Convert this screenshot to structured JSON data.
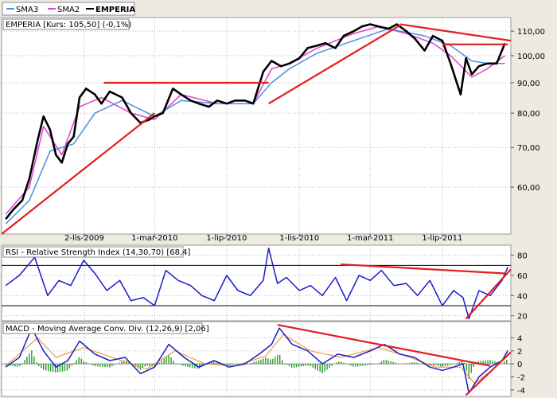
{
  "colors": {
    "sma3": "#4a90e2",
    "sma2": "#e040d0",
    "price": "#000000",
    "trend": "#e02020",
    "indicator": "#1a1acc",
    "signal": "#e8a040",
    "hist": "#2a9a2a",
    "background": "#ffffff",
    "outer": "#eeeae2"
  },
  "legend": {
    "sma3": "SMA3",
    "sma2": "SMA2",
    "price": "EMPERIA"
  },
  "chart_data": [
    {
      "type": "line",
      "title": "EMPERIA [Kurs: 105,50] (-0,1%)",
      "y_scale": "log",
      "ylim": [
        50,
        116
      ],
      "y_ticks": [
        "110,00",
        "100,00",
        "90,00",
        "80,00",
        "70,00",
        "60,00"
      ],
      "y_tick_values": [
        110,
        100,
        90,
        80,
        70,
        60
      ],
      "x_labels": [
        "2-lis-2009",
        "1-mar-2010",
        "1-lip-2010",
        "1-lis-2010",
        "1-mar-2011",
        "1-lip-2011"
      ],
      "x_label_dates": [
        "2009-11-02",
        "2010-03-01",
        "2010-07-01",
        "2010-11-01",
        "2011-03-01",
        "2011-07-01"
      ],
      "x_range": [
        "2009-06-15",
        "2011-10-25"
      ],
      "grid": true,
      "legend_position": "top-left",
      "series": [
        {
          "name": "EMPERIA",
          "x": [
            "2009-06-22",
            "2009-07-05",
            "2009-07-20",
            "2009-08-01",
            "2009-08-15",
            "2009-08-25",
            "2009-09-05",
            "2009-09-15",
            "2009-09-25",
            "2009-10-05",
            "2009-10-15",
            "2009-10-25",
            "2009-11-05",
            "2009-11-20",
            "2009-12-01",
            "2009-12-15",
            "2010-01-05",
            "2010-01-20",
            "2010-02-05",
            "2010-02-20",
            "2010-03-01",
            "2010-03-15",
            "2010-04-01",
            "2010-04-15",
            "2010-05-01",
            "2010-05-15",
            "2010-06-01",
            "2010-06-15",
            "2010-07-01",
            "2010-07-15",
            "2010-08-01",
            "2010-08-15",
            "2010-09-01",
            "2010-09-15",
            "2010-10-01",
            "2010-10-15",
            "2010-11-01",
            "2010-11-15",
            "2010-12-01",
            "2010-12-15",
            "2011-01-01",
            "2011-01-15",
            "2011-02-01",
            "2011-02-15",
            "2011-03-01",
            "2011-03-15",
            "2011-04-01",
            "2011-04-15",
            "2011-05-01",
            "2011-05-15",
            "2011-06-01",
            "2011-06-15",
            "2011-07-01",
            "2011-07-15",
            "2011-08-01",
            "2011-08-10",
            "2011-08-20",
            "2011-09-01",
            "2011-09-15",
            "2011-10-01",
            "2011-10-15"
          ],
          "y": [
            53,
            55,
            57,
            62,
            72,
            79,
            75,
            68,
            66,
            71,
            73,
            85,
            88,
            86,
            83,
            87,
            85,
            80,
            77,
            78,
            79,
            80,
            88,
            86,
            84,
            83,
            82,
            84,
            83,
            84,
            84,
            83,
            94,
            98,
            96,
            97,
            99,
            103,
            104,
            105,
            103,
            108,
            110,
            112,
            113,
            112,
            111,
            113,
            110,
            107,
            102,
            108,
            106,
            97,
            86,
            99,
            93,
            96,
            97,
            97,
            105
          ]
        },
        {
          "name": "SMA2",
          "x": [
            "2009-06-22",
            "2009-08-01",
            "2009-08-25",
            "2009-09-25",
            "2009-10-25",
            "2009-12-01",
            "2010-01-20",
            "2010-03-01",
            "2010-04-15",
            "2010-06-15",
            "2010-08-15",
            "2010-09-15",
            "2010-10-15",
            "2010-12-01",
            "2011-02-01",
            "2011-03-15",
            "2011-05-01",
            "2011-06-15",
            "2011-07-15",
            "2011-08-20",
            "2011-09-15",
            "2011-10-15"
          ],
          "y": [
            54,
            60,
            76,
            68,
            82,
            85,
            80,
            78,
            86,
            83,
            83,
            95,
            97,
            103,
            109,
            112,
            109,
            105,
            100,
            92,
            95,
            100
          ]
        },
        {
          "name": "SMA3",
          "x": [
            "2009-06-22",
            "2009-08-01",
            "2009-09-05",
            "2009-10-15",
            "2009-11-20",
            "2010-01-05",
            "2010-03-01",
            "2010-04-15",
            "2010-06-15",
            "2010-08-15",
            "2010-09-15",
            "2010-10-15",
            "2010-12-01",
            "2011-02-01",
            "2011-04-01",
            "2011-06-01",
            "2011-07-15",
            "2011-08-20",
            "2011-09-15",
            "2011-10-15"
          ],
          "y": [
            52,
            57,
            69,
            71,
            80,
            84,
            79,
            84,
            83,
            83,
            90,
            95,
            101,
            106,
            111,
            108,
            104,
            98,
            97,
            97
          ]
        }
      ],
      "trend_lines": [
        {
          "x": [
            "2009-06-15",
            "2010-03-01"
          ],
          "y": [
            50,
            80
          ]
        },
        {
          "x": [
            "2010-09-10",
            "2011-04-20"
          ],
          "y": [
            83,
            112.5
          ]
        },
        {
          "x": [
            "2009-12-05",
            "2010-09-10"
          ],
          "y": [
            90,
            90
          ]
        },
        {
          "x": [
            "2011-04-20",
            "2011-10-25"
          ],
          "y": [
            113,
            106
          ]
        },
        {
          "x": [
            "2011-07-01",
            "2011-10-20"
          ],
          "y": [
            104.5,
            104.5
          ]
        }
      ]
    },
    {
      "type": "line",
      "title": "RSI - Relative Strength Index (14,30,70) [68,4]",
      "ylim": [
        15,
        90
      ],
      "y_ticks": [
        "80",
        "60",
        "40",
        "20"
      ],
      "y_tick_values": [
        80,
        60,
        40,
        20
      ],
      "reference_levels": [
        30,
        70
      ],
      "series": [
        {
          "name": "RSI",
          "x": [
            "2009-06-22",
            "2009-07-15",
            "2009-08-10",
            "2009-09-01",
            "2009-09-20",
            "2009-10-10",
            "2009-11-01",
            "2009-11-20",
            "2009-12-10",
            "2010-01-01",
            "2010-01-20",
            "2010-02-10",
            "2010-03-01",
            "2010-03-20",
            "2010-04-10",
            "2010-05-01",
            "2010-05-20",
            "2010-06-10",
            "2010-07-01",
            "2010-07-20",
            "2010-08-10",
            "2010-09-01",
            "2010-09-10",
            "2010-09-25",
            "2010-10-10",
            "2010-11-01",
            "2010-11-20",
            "2010-12-10",
            "2011-01-01",
            "2011-01-20",
            "2011-02-10",
            "2011-03-01",
            "2011-03-20",
            "2011-04-10",
            "2011-05-01",
            "2011-05-20",
            "2011-06-10",
            "2011-07-01",
            "2011-07-20",
            "2011-08-05",
            "2011-08-15",
            "2011-09-01",
            "2011-09-20",
            "2011-10-10",
            "2011-10-20"
          ],
          "y": [
            50,
            60,
            78,
            40,
            55,
            50,
            75,
            62,
            45,
            55,
            35,
            38,
            30,
            65,
            55,
            50,
            40,
            35,
            60,
            45,
            40,
            55,
            87,
            52,
            58,
            45,
            50,
            40,
            58,
            35,
            60,
            55,
            65,
            50,
            52,
            40,
            55,
            30,
            45,
            38,
            17,
            45,
            40,
            55,
            68.4
          ]
        }
      ],
      "trend_lines": [
        {
          "x": [
            "2011-01-10",
            "2011-10-15"
          ],
          "y": [
            71,
            62
          ]
        },
        {
          "x": [
            "2011-08-10",
            "2011-10-25"
          ],
          "y": [
            17,
            66
          ]
        }
      ]
    },
    {
      "type": "line",
      "title": "MACD - Moving Average Conv. Div. (12,26,9) [2,06]",
      "ylim": [
        -5,
        6.5
      ],
      "y_ticks": [
        "4",
        "2",
        "0",
        "-2",
        "-4"
      ],
      "y_tick_values": [
        4,
        2,
        0,
        -2,
        -4
      ],
      "series": [
        {
          "name": "MACD",
          "x": [
            "2009-06-22",
            "2009-07-15",
            "2009-08-05",
            "2009-08-25",
            "2009-09-15",
            "2009-10-05",
            "2009-10-25",
            "2009-11-20",
            "2009-12-15",
            "2010-01-10",
            "2010-02-05",
            "2010-03-01",
            "2010-03-25",
            "2010-04-20",
            "2010-05-15",
            "2010-06-10",
            "2010-07-05",
            "2010-08-01",
            "2010-08-25",
            "2010-09-15",
            "2010-09-28",
            "2010-10-20",
            "2010-11-15",
            "2010-12-10",
            "2011-01-05",
            "2011-02-01",
            "2011-03-01",
            "2011-03-25",
            "2011-04-20",
            "2011-05-15",
            "2011-06-10",
            "2011-07-01",
            "2011-07-20",
            "2011-08-05",
            "2011-08-15",
            "2011-09-01",
            "2011-09-20",
            "2011-10-10",
            "2011-10-20"
          ],
          "y": [
            -0.5,
            1,
            5.5,
            2,
            -0.5,
            0.5,
            3.5,
            1.5,
            0.5,
            1,
            -1.5,
            -0.5,
            3,
            1,
            -0.5,
            0.5,
            -0.5,
            0,
            1.5,
            3,
            5.5,
            3,
            2,
            0,
            1.5,
            1,
            2,
            3,
            1.5,
            1,
            -0.5,
            -1,
            -0.5,
            0,
            -4.5,
            -2,
            -0.5,
            0.5,
            2.06
          ]
        },
        {
          "name": "Signal",
          "x": [
            "2009-06-22",
            "2009-08-15",
            "2009-09-15",
            "2009-11-01",
            "2009-12-25",
            "2010-02-15",
            "2010-04-05",
            "2010-05-25",
            "2010-07-15",
            "2010-09-05",
            "2010-10-05",
            "2010-11-20",
            "2011-01-10",
            "2011-03-15",
            "2011-05-01",
            "2011-06-20",
            "2011-08-01",
            "2011-08-25",
            "2011-09-25",
            "2011-10-20"
          ],
          "y": [
            -0.3,
            4,
            1,
            2.5,
            0.8,
            -0.8,
            2,
            0,
            -0.3,
            1.2,
            4.5,
            2,
            1,
            2.5,
            1.2,
            -0.5,
            -0.5,
            -3,
            -0.8,
            1.2
          ]
        }
      ],
      "trend_lines": [
        {
          "x": [
            "2010-09-25",
            "2011-09-20"
          ],
          "y": [
            6,
            -0.3
          ]
        },
        {
          "x": [
            "2011-08-10",
            "2011-10-25"
          ],
          "y": [
            -4.8,
            1.8
          ]
        }
      ]
    }
  ]
}
